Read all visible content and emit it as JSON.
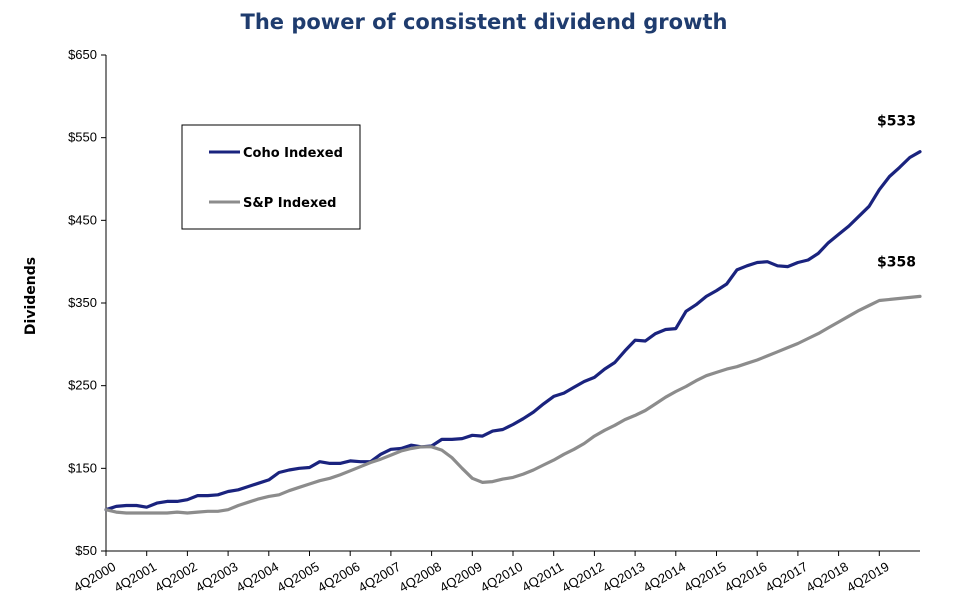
{
  "chart_data": {
    "type": "line",
    "title": "The power of consistent dividend growth",
    "ylabel": "Dividends",
    "xlabel": "",
    "ylim": [
      50,
      650
    ],
    "yticks": [
      50,
      150,
      250,
      350,
      450,
      550,
      650
    ],
    "ytick_labels": [
      "$50",
      "$150",
      "$250",
      "$350",
      "$450",
      "$550",
      "$650"
    ],
    "x_categories": [
      "4Q2000",
      "4Q2001",
      "4Q2002",
      "4Q2003",
      "4Q2004",
      "4Q2005",
      "4Q2006",
      "4Q2007",
      "4Q2008",
      "4Q2009",
      "4Q2010",
      "4Q2011",
      "4Q2012",
      "4Q2013",
      "4Q2014",
      "4Q2015",
      "4Q2016",
      "4Q2017",
      "4Q2018",
      "4Q2019"
    ],
    "x_unit": "quarter",
    "grid": false,
    "legend": "upper-left (inset box)",
    "series": [
      {
        "name": "Coho Indexed",
        "color": "#1a237e",
        "end_label": "$533",
        "points": [
          [
            "4Q2000",
            100
          ],
          [
            "1Q2001",
            104
          ],
          [
            "2Q2001",
            105
          ],
          [
            "3Q2001",
            105
          ],
          [
            "4Q2001",
            103
          ],
          [
            "1Q2002",
            108
          ],
          [
            "2Q2002",
            110
          ],
          [
            "3Q2002",
            110
          ],
          [
            "4Q2002",
            112
          ],
          [
            "1Q2003",
            117
          ],
          [
            "2Q2003",
            117
          ],
          [
            "3Q2003",
            118
          ],
          [
            "4Q2003",
            122
          ],
          [
            "1Q2004",
            124
          ],
          [
            "2Q2004",
            128
          ],
          [
            "3Q2004",
            132
          ],
          [
            "4Q2004",
            136
          ],
          [
            "1Q2005",
            145
          ],
          [
            "2Q2005",
            148
          ],
          [
            "3Q2005",
            150
          ],
          [
            "4Q2005",
            151
          ],
          [
            "1Q2006",
            158
          ],
          [
            "2Q2006",
            156
          ],
          [
            "3Q2006",
            156
          ],
          [
            "4Q2006",
            159
          ],
          [
            "1Q2007",
            158
          ],
          [
            "2Q2007",
            158
          ],
          [
            "3Q2007",
            167
          ],
          [
            "4Q2007",
            173
          ],
          [
            "1Q2008",
            174
          ],
          [
            "2Q2008",
            178
          ],
          [
            "3Q2008",
            176
          ],
          [
            "4Q2008",
            177
          ],
          [
            "1Q2009",
            185
          ],
          [
            "2Q2009",
            185
          ],
          [
            "3Q2009",
            186
          ],
          [
            "4Q2009",
            190
          ],
          [
            "1Q2010",
            189
          ],
          [
            "2Q2010",
            195
          ],
          [
            "3Q2010",
            197
          ],
          [
            "4Q2010",
            203
          ],
          [
            "1Q2011",
            210
          ],
          [
            "2Q2011",
            218
          ],
          [
            "3Q2011",
            228
          ],
          [
            "4Q2011",
            237
          ],
          [
            "1Q2012",
            241
          ],
          [
            "2Q2012",
            248
          ],
          [
            "3Q2012",
            255
          ],
          [
            "4Q2012",
            260
          ],
          [
            "1Q2013",
            270
          ],
          [
            "2Q2013",
            278
          ],
          [
            "3Q2013",
            292
          ],
          [
            "4Q2013",
            305
          ],
          [
            "1Q2014",
            304
          ],
          [
            "2Q2014",
            313
          ],
          [
            "3Q2014",
            318
          ],
          [
            "4Q2014",
            319
          ],
          [
            "1Q2015",
            340
          ],
          [
            "2Q2015",
            348
          ],
          [
            "3Q2015",
            358
          ],
          [
            "4Q2015",
            365
          ],
          [
            "1Q2016",
            373
          ],
          [
            "2Q2016",
            390
          ],
          [
            "3Q2016",
            395
          ],
          [
            "4Q2016",
            399
          ],
          [
            "1Q2017",
            400
          ],
          [
            "2Q2017",
            395
          ],
          [
            "3Q2017",
            394
          ],
          [
            "4Q2017",
            399
          ],
          [
            "1Q2018",
            402
          ],
          [
            "2Q2018",
            410
          ],
          [
            "3Q2018",
            423
          ],
          [
            "4Q2018",
            433
          ],
          [
            "1Q2019",
            443
          ],
          [
            "2Q2019",
            455
          ],
          [
            "3Q2019",
            467
          ],
          [
            "4Q2019",
            487
          ],
          [
            "1Q2020",
            503
          ],
          [
            "2Q2020",
            514
          ],
          [
            "3Q2020",
            526
          ],
          [
            "4Q2020",
            533
          ]
        ]
      },
      {
        "name": "S&P Indexed",
        "color": "#8c8c8c",
        "end_label": "$358",
        "points": [
          [
            "4Q2000",
            100
          ],
          [
            "1Q2001",
            97
          ],
          [
            "2Q2001",
            96
          ],
          [
            "3Q2001",
            96
          ],
          [
            "4Q2001",
            96
          ],
          [
            "1Q2002",
            96
          ],
          [
            "2Q2002",
            96
          ],
          [
            "3Q2002",
            97
          ],
          [
            "4Q2002",
            96
          ],
          [
            "1Q2003",
            97
          ],
          [
            "2Q2003",
            98
          ],
          [
            "3Q2003",
            98
          ],
          [
            "4Q2003",
            100
          ],
          [
            "1Q2004",
            105
          ],
          [
            "2Q2004",
            109
          ],
          [
            "3Q2004",
            113
          ],
          [
            "4Q2004",
            116
          ],
          [
            "1Q2005",
            118
          ],
          [
            "2Q2005",
            123
          ],
          [
            "3Q2005",
            127
          ],
          [
            "4Q2005",
            131
          ],
          [
            "1Q2006",
            135
          ],
          [
            "2Q2006",
            138
          ],
          [
            "3Q2006",
            142
          ],
          [
            "4Q2006",
            147
          ],
          [
            "1Q2007",
            152
          ],
          [
            "2Q2007",
            157
          ],
          [
            "3Q2007",
            161
          ],
          [
            "4Q2007",
            166
          ],
          [
            "1Q2008",
            171
          ],
          [
            "2Q2008",
            174
          ],
          [
            "3Q2008",
            176
          ],
          [
            "4Q2008",
            176
          ],
          [
            "1Q2009",
            172
          ],
          [
            "2Q2009",
            163
          ],
          [
            "3Q2009",
            150
          ],
          [
            "4Q2009",
            138
          ],
          [
            "1Q2010",
            133
          ],
          [
            "2Q2010",
            134
          ],
          [
            "3Q2010",
            137
          ],
          [
            "4Q2010",
            139
          ],
          [
            "1Q2011",
            143
          ],
          [
            "2Q2011",
            148
          ],
          [
            "3Q2011",
            154
          ],
          [
            "4Q2011",
            160
          ],
          [
            "1Q2012",
            167
          ],
          [
            "2Q2012",
            173
          ],
          [
            "3Q2012",
            180
          ],
          [
            "4Q2012",
            189
          ],
          [
            "1Q2013",
            196
          ],
          [
            "2Q2013",
            202
          ],
          [
            "3Q2013",
            209
          ],
          [
            "4Q2013",
            214
          ],
          [
            "1Q2014",
            220
          ],
          [
            "2Q2014",
            228
          ],
          [
            "3Q2014",
            236
          ],
          [
            "4Q2014",
            243
          ],
          [
            "1Q2015",
            249
          ],
          [
            "2Q2015",
            256
          ],
          [
            "3Q2015",
            262
          ],
          [
            "4Q2015",
            266
          ],
          [
            "1Q2016",
            270
          ],
          [
            "2Q2016",
            273
          ],
          [
            "3Q2016",
            277
          ],
          [
            "4Q2016",
            281
          ],
          [
            "1Q2017",
            286
          ],
          [
            "2Q2017",
            291
          ],
          [
            "3Q2017",
            296
          ],
          [
            "4Q2017",
            301
          ],
          [
            "1Q2018",
            307
          ],
          [
            "2Q2018",
            313
          ],
          [
            "3Q2018",
            320
          ],
          [
            "4Q2018",
            327
          ],
          [
            "1Q2019",
            334
          ],
          [
            "2Q2019",
            341
          ],
          [
            "3Q2019",
            347
          ],
          [
            "4Q2019",
            353
          ],
          [
            "4Q2020",
            358
          ]
        ]
      }
    ]
  }
}
